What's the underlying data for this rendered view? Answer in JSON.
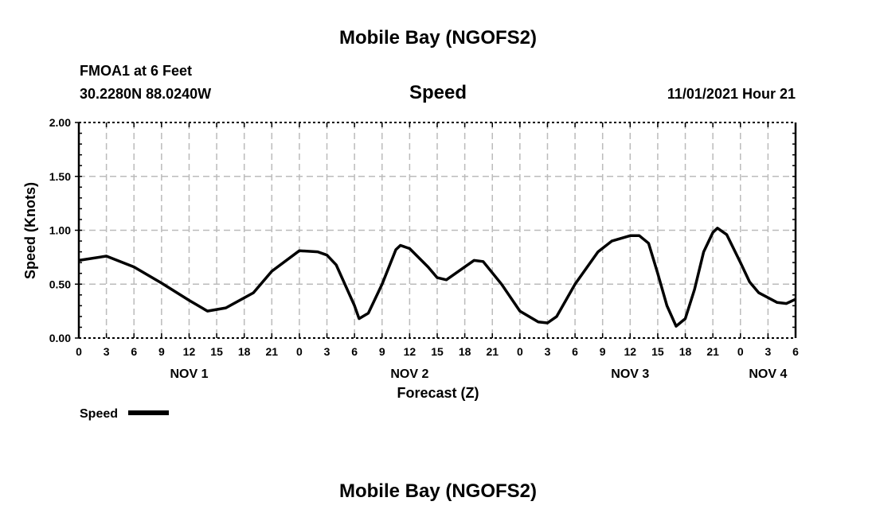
{
  "header": {
    "title": "Mobile Bay (NGOFS2)",
    "station": "FMOA1 at 6 Feet",
    "coords": "30.2280N  88.0240W",
    "variable": "Speed",
    "datetime": "11/01/2021 Hour 21"
  },
  "footer": {
    "title": "Mobile Bay (NGOFS2)"
  },
  "chart_data": {
    "type": "line",
    "title": "Speed",
    "xlabel": "Forecast (Z)",
    "ylabel": "Speed (Knots)",
    "ylim": [
      0,
      2
    ],
    "xlim_hours": [
      0,
      78
    ],
    "yticks": [
      "0.00",
      "0.50",
      "1.00",
      "1.50",
      "2.00"
    ],
    "xtick_labels": [
      "0",
      "3",
      "6",
      "9",
      "12",
      "15",
      "18",
      "21",
      "0",
      "3",
      "6",
      "9",
      "12",
      "15",
      "18",
      "21",
      "0",
      "3",
      "6",
      "9",
      "12",
      "15",
      "18",
      "21",
      "0",
      "3",
      "6"
    ],
    "day_labels": [
      {
        "label": "NOV 1",
        "hour": 12
      },
      {
        "label": "NOV 2",
        "hour": 36
      },
      {
        "label": "NOV 3",
        "hour": 60
      },
      {
        "label": "NOV 4",
        "hour": 75
      }
    ],
    "grid": true,
    "legend": {
      "label": "Speed",
      "placement": "bottom-left"
    },
    "series": [
      {
        "name": "Speed",
        "color": "#000000",
        "points": [
          [
            0,
            0.72
          ],
          [
            3,
            0.76
          ],
          [
            6,
            0.66
          ],
          [
            9,
            0.51
          ],
          [
            12,
            0.35
          ],
          [
            14,
            0.25
          ],
          [
            16,
            0.28
          ],
          [
            19,
            0.42
          ],
          [
            21,
            0.62
          ],
          [
            24,
            0.81
          ],
          [
            26,
            0.8
          ],
          [
            27,
            0.77
          ],
          [
            28,
            0.68
          ],
          [
            30,
            0.3
          ],
          [
            30.5,
            0.18
          ],
          [
            31.5,
            0.23
          ],
          [
            33,
            0.5
          ],
          [
            34.5,
            0.82
          ],
          [
            35,
            0.86
          ],
          [
            36,
            0.83
          ],
          [
            38,
            0.66
          ],
          [
            39,
            0.56
          ],
          [
            40,
            0.54
          ],
          [
            42,
            0.66
          ],
          [
            43,
            0.72
          ],
          [
            44,
            0.71
          ],
          [
            46,
            0.5
          ],
          [
            48,
            0.25
          ],
          [
            50,
            0.15
          ],
          [
            51,
            0.14
          ],
          [
            52,
            0.2
          ],
          [
            54,
            0.5
          ],
          [
            56.5,
            0.8
          ],
          [
            58,
            0.9
          ],
          [
            60,
            0.95
          ],
          [
            61,
            0.95
          ],
          [
            62,
            0.88
          ],
          [
            63,
            0.6
          ],
          [
            64,
            0.3
          ],
          [
            65,
            0.11
          ],
          [
            66,
            0.18
          ],
          [
            67,
            0.45
          ],
          [
            68,
            0.8
          ],
          [
            69,
            0.98
          ],
          [
            69.5,
            1.02
          ],
          [
            70.5,
            0.96
          ],
          [
            72,
            0.7
          ],
          [
            73,
            0.52
          ],
          [
            74,
            0.42
          ],
          [
            76,
            0.33
          ],
          [
            77,
            0.32
          ],
          [
            78,
            0.36
          ]
        ]
      }
    ]
  }
}
